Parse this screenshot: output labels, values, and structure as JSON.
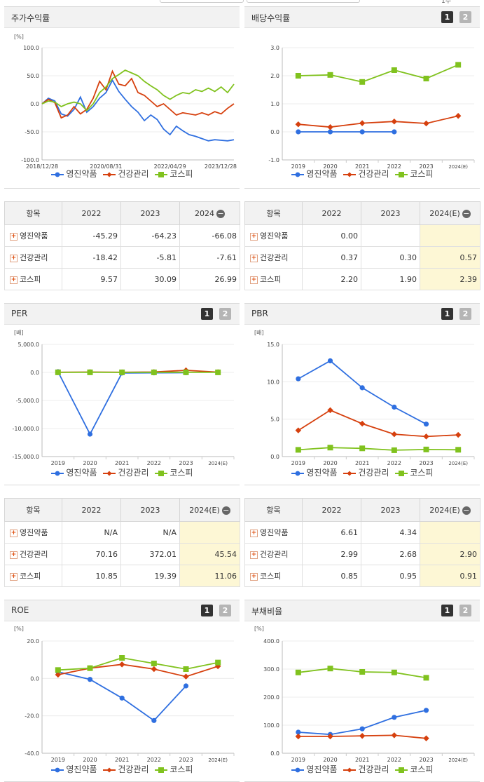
{
  "top_partial": {
    "right_text": "1주"
  },
  "legend_names": [
    "영진약품",
    "건강관리",
    "코스피"
  ],
  "colors": {
    "s1": "#2f6fe0",
    "s2": "#d6400e",
    "s3": "#80c21e"
  },
  "buttons": [
    "1",
    "2"
  ],
  "panels": {
    "stock_return": {
      "title": "주가수익률",
      "unit": "[%]"
    },
    "dividend": {
      "title": "배당수익률"
    },
    "per": {
      "title": "PER",
      "unit": "[배]"
    },
    "pbr": {
      "title": "PBR",
      "unit": "[배]"
    },
    "roe": {
      "title": "ROE",
      "unit": "[%]"
    },
    "debt": {
      "title": "부채비율",
      "unit": "[%]"
    }
  },
  "tables": {
    "stock_return": {
      "header": [
        "항목",
        "2022",
        "2023",
        "2024"
      ],
      "rows": [
        {
          "label": "영진약품",
          "values": [
            "-45.29",
            "-64.23",
            "-66.08"
          ]
        },
        {
          "label": "건강관리",
          "values": [
            "-18.42",
            "-5.81",
            "-7.61"
          ]
        },
        {
          "label": "코스피",
          "values": [
            "9.57",
            "30.09",
            "26.99"
          ]
        }
      ]
    },
    "dividend": {
      "header": [
        "항목",
        "2022",
        "2023",
        "2024(E)"
      ],
      "rows": [
        {
          "label": "영진약품",
          "values": [
            "0.00",
            "",
            ""
          ]
        },
        {
          "label": "건강관리",
          "values": [
            "0.37",
            "0.30",
            "0.57"
          ]
        },
        {
          "label": "코스피",
          "values": [
            "2.20",
            "1.90",
            "2.39"
          ]
        }
      ]
    },
    "per": {
      "header": [
        "항목",
        "2022",
        "2023",
        "2024(E)"
      ],
      "rows": [
        {
          "label": "영진약품",
          "values": [
            "N/A",
            "N/A",
            ""
          ]
        },
        {
          "label": "건강관리",
          "values": [
            "70.16",
            "372.01",
            "45.54"
          ]
        },
        {
          "label": "코스피",
          "values": [
            "10.85",
            "19.39",
            "11.06"
          ]
        }
      ]
    },
    "pbr": {
      "header": [
        "항목",
        "2022",
        "2023",
        "2024(E)"
      ],
      "rows": [
        {
          "label": "영진약품",
          "values": [
            "6.61",
            "4.34",
            ""
          ]
        },
        {
          "label": "건강관리",
          "values": [
            "2.99",
            "2.68",
            "2.90"
          ]
        },
        {
          "label": "코스피",
          "values": [
            "0.85",
            "0.95",
            "0.91"
          ]
        }
      ]
    }
  },
  "chart_data": [
    {
      "id": "stock_return",
      "type": "line",
      "ylim": [
        -100,
        100
      ],
      "yticks": [
        "100.0",
        "50.0",
        "0.0",
        "-50.0",
        "-100.0"
      ],
      "xticks": [
        "2018/12/28",
        "2020/08/31",
        "2022/04/29",
        "2023/12/28"
      ],
      "x": [
        "2018-12-28",
        "2019-02",
        "2019-04",
        "2019-06",
        "2019-08",
        "2019-10",
        "2019-12",
        "2020-02",
        "2020-04",
        "2020-06",
        "2020-08",
        "2020-10",
        "2020-12",
        "2021-02",
        "2021-04",
        "2021-06",
        "2021-08",
        "2021-10",
        "2021-12",
        "2022-02",
        "2022-04",
        "2022-06",
        "2022-08",
        "2022-10",
        "2022-12",
        "2023-02",
        "2023-04",
        "2023-06",
        "2023-08",
        "2023-10",
        "2023-12-28"
      ],
      "series": [
        {
          "name": "영진약품",
          "values": [
            0,
            10,
            5,
            -18,
            -22,
            -10,
            12,
            -15,
            -5,
            10,
            20,
            42,
            22,
            8,
            -5,
            -15,
            -30,
            -20,
            -28,
            -45,
            -55,
            -40,
            -48,
            -55,
            -58,
            -62,
            -66,
            -64,
            -65,
            -66,
            -64
          ]
        },
        {
          "name": "건강관리",
          "values": [
            0,
            8,
            2,
            -25,
            -20,
            -5,
            -18,
            -10,
            10,
            40,
            25,
            58,
            35,
            32,
            45,
            20,
            15,
            5,
            -5,
            0,
            -10,
            -20,
            -16,
            -18,
            -20,
            -16,
            -20,
            -14,
            -18,
            -8,
            0
          ]
        },
        {
          "name": "코스피",
          "values": [
            0,
            5,
            3,
            -5,
            0,
            3,
            0,
            -12,
            0,
            20,
            30,
            45,
            52,
            60,
            55,
            50,
            40,
            32,
            25,
            15,
            8,
            15,
            20,
            18,
            25,
            22,
            28,
            22,
            30,
            20,
            35
          ]
        }
      ]
    },
    {
      "id": "dividend",
      "type": "line",
      "ylim": [
        -1,
        3
      ],
      "yticks": [
        "3.0",
        "2.0",
        "1.0",
        "0.0",
        "-1.0"
      ],
      "categories": [
        "2019",
        "2020",
        "2021",
        "2022",
        "2023",
        "2024(E)"
      ],
      "series": [
        {
          "name": "영진약품",
          "values": [
            0,
            0,
            0,
            0,
            null,
            null
          ]
        },
        {
          "name": "건강관리",
          "values": [
            0.27,
            0.17,
            0.31,
            0.37,
            0.3,
            0.57
          ]
        },
        {
          "name": "코스피",
          "values": [
            2.0,
            2.03,
            1.78,
            2.2,
            1.9,
            2.39
          ]
        }
      ]
    },
    {
      "id": "per",
      "type": "line",
      "ylim": [
        -15000,
        5000
      ],
      "yticks": [
        "5,000.0",
        "0.0",
        "-5,000.0",
        "-10,000.0",
        "-15,000.0"
      ],
      "categories": [
        "2019",
        "2020",
        "2021",
        "2022",
        "2023",
        "2024(E)"
      ],
      "series": [
        {
          "name": "영진약품",
          "values": [
            130,
            -11000,
            -100,
            -80,
            -50,
            null
          ]
        },
        {
          "name": "건강관리",
          "values": [
            30,
            60,
            20,
            70.16,
            372.01,
            45.54
          ]
        },
        {
          "name": "코스피",
          "values": [
            18,
            20,
            14,
            10.85,
            19.39,
            11.06
          ]
        }
      ]
    },
    {
      "id": "pbr",
      "type": "line",
      "ylim": [
        0,
        15
      ],
      "yticks": [
        "15.0",
        "10.0",
        "5.0",
        "0.0"
      ],
      "categories": [
        "2019",
        "2020",
        "2021",
        "2022",
        "2023",
        "2024(E)"
      ],
      "series": [
        {
          "name": "영진약품",
          "values": [
            10.4,
            12.8,
            9.2,
            6.61,
            4.34,
            null
          ]
        },
        {
          "name": "건강관리",
          "values": [
            3.5,
            6.2,
            4.4,
            2.99,
            2.68,
            2.9
          ]
        },
        {
          "name": "코스피",
          "values": [
            0.9,
            1.2,
            1.1,
            0.85,
            0.95,
            0.91
          ]
        }
      ]
    },
    {
      "id": "roe",
      "type": "line",
      "ylim": [
        -40,
        20
      ],
      "yticks": [
        "20.0",
        "0.0",
        "-20.0",
        "-40.0"
      ],
      "categories": [
        "2019",
        "2020",
        "2021",
        "2022",
        "2023",
        "2024(E)"
      ],
      "series": [
        {
          "name": "영진약품",
          "values": [
            3.5,
            -0.5,
            -10.5,
            -22.5,
            -4.0,
            null
          ]
        },
        {
          "name": "건강관리",
          "values": [
            2.0,
            5.5,
            7.5,
            5.0,
            1.0,
            6.5
          ]
        },
        {
          "name": "코스피",
          "values": [
            4.5,
            5.5,
            11.0,
            8.0,
            5.0,
            8.5
          ]
        }
      ]
    },
    {
      "id": "debt",
      "type": "line",
      "ylim": [
        0,
        400
      ],
      "yticks": [
        "400.0",
        "300.0",
        "200.0",
        "100.0",
        "0.0"
      ],
      "categories": [
        "2019",
        "2020",
        "2021",
        "2022",
        "2023",
        "2024(E)"
      ],
      "series": [
        {
          "name": "영진약품",
          "values": [
            75,
            67,
            87,
            128,
            153,
            null
          ]
        },
        {
          "name": "건강관리",
          "values": [
            60,
            60,
            62,
            64,
            53,
            null
          ]
        },
        {
          "name": "코스피",
          "values": [
            288,
            302,
            290,
            288,
            269,
            null
          ]
        }
      ]
    }
  ]
}
